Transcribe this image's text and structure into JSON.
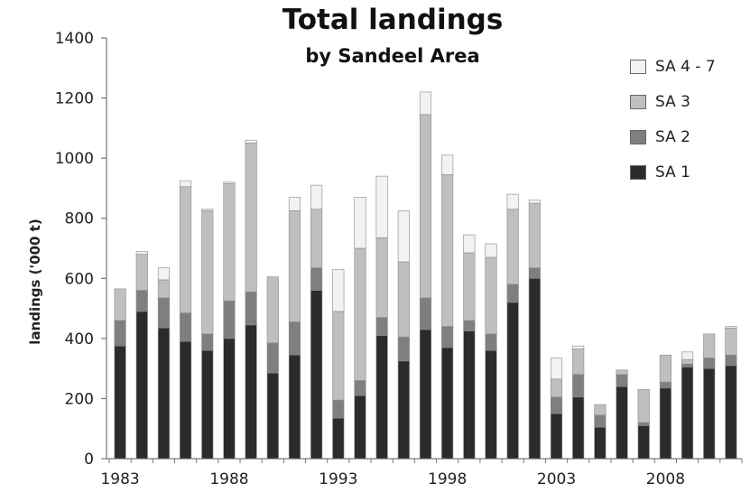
{
  "chart_data": {
    "type": "bar",
    "stacked": true,
    "title": "Total landings",
    "subtitle": "by Sandeel Area",
    "xlabel": "",
    "ylabel": "landings ('000 t)",
    "ylim": [
      0,
      1400
    ],
    "yticks": [
      0,
      200,
      400,
      600,
      800,
      1000,
      1200,
      1400
    ],
    "xtick_labels": [
      "1983",
      "1988",
      "1993",
      "1998",
      "2003",
      "2008"
    ],
    "legend_position": "top-right",
    "grid": false,
    "categories": [
      "1983",
      "1984",
      "1985",
      "1986",
      "1987",
      "1988",
      "1989",
      "1990",
      "1991",
      "1992",
      "1993",
      "1994",
      "1995",
      "1996",
      "1997",
      "1998",
      "1999",
      "2000",
      "2001",
      "2002",
      "2003",
      "2004",
      "2005",
      "2006",
      "2007",
      "2008",
      "2009",
      "2010",
      "2011"
    ],
    "series": [
      {
        "name": "SA 1",
        "color": "#2b2b2b",
        "values": [
          375,
          490,
          435,
          390,
          360,
          400,
          445,
          285,
          345,
          560,
          135,
          210,
          410,
          325,
          430,
          370,
          425,
          360,
          520,
          600,
          150,
          205,
          105,
          240,
          110,
          235,
          305,
          300,
          310
        ]
      },
      {
        "name": "SA 2",
        "color": "#7f7f7f",
        "values": [
          85,
          70,
          100,
          95,
          55,
          125,
          110,
          100,
          110,
          75,
          60,
          50,
          60,
          80,
          105,
          70,
          35,
          55,
          60,
          35,
          55,
          75,
          40,
          40,
          10,
          20,
          10,
          35,
          35
        ]
      },
      {
        "name": "SA 3",
        "color": "#bfbfbf",
        "values": [
          105,
          120,
          60,
          420,
          410,
          390,
          495,
          220,
          370,
          195,
          295,
          440,
          265,
          250,
          610,
          505,
          225,
          255,
          250,
          215,
          60,
          85,
          35,
          15,
          110,
          90,
          15,
          80,
          90
        ]
      },
      {
        "name": "SA 4 - 7",
        "color": "#f2f2f2",
        "values": [
          0,
          10,
          40,
          20,
          5,
          5,
          10,
          0,
          45,
          80,
          140,
          170,
          205,
          170,
          75,
          65,
          60,
          45,
          50,
          10,
          70,
          10,
          0,
          0,
          0,
          0,
          25,
          0,
          5
        ]
      }
    ],
    "legend_order": [
      "SA 4 - 7",
      "SA 3",
      "SA 2",
      "SA 1"
    ]
  }
}
